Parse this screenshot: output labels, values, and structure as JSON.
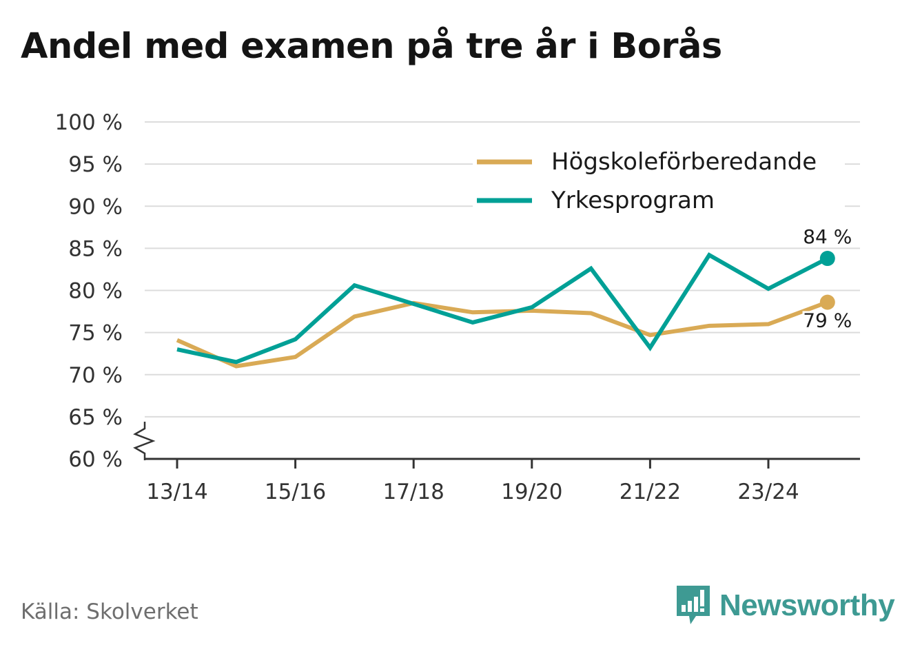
{
  "title": "Andel med examen på tre år i Borås",
  "source": "Källa: Skolverket",
  "brand": {
    "name": "Newsworthy",
    "icon": "newsworthy-logo-icon",
    "color": "#3e9a93"
  },
  "chart_data": {
    "type": "line",
    "title": "Andel med examen på tre år i Borås",
    "xlabel": "",
    "ylabel": "",
    "categories": [
      "13/14",
      "14/15",
      "15/16",
      "16/17",
      "17/18",
      "18/19",
      "19/20",
      "20/21",
      "21/22",
      "22/23",
      "23/24",
      "24/25"
    ],
    "x_tick_labels": [
      "13/14",
      "15/16",
      "17/18",
      "19/20",
      "21/22",
      "23/24"
    ],
    "y_ticks": [
      60,
      65,
      70,
      75,
      80,
      85,
      90,
      95,
      100
    ],
    "y_tick_labels": [
      "60 %",
      "65 %",
      "70 %",
      "75 %",
      "80 %",
      "85 %",
      "90 %",
      "95 %",
      "100 %"
    ],
    "ylim": [
      60,
      100
    ],
    "y_axis_break": true,
    "grid": true,
    "legend_position": "top-right",
    "series": [
      {
        "name": "Högskoleförberedande",
        "color": "#d9aa55",
        "values": [
          74.1,
          71.0,
          72.1,
          76.9,
          78.5,
          77.4,
          77.6,
          77.3,
          74.7,
          75.8,
          76.0,
          78.6
        ],
        "end_label": "79 %"
      },
      {
        "name": "Yrkesprogram",
        "color": "#00a096",
        "values": [
          73.0,
          71.5,
          74.2,
          80.6,
          78.4,
          76.2,
          78.0,
          82.6,
          73.2,
          84.2,
          80.2,
          83.8
        ],
        "end_label": "84 %"
      }
    ]
  }
}
